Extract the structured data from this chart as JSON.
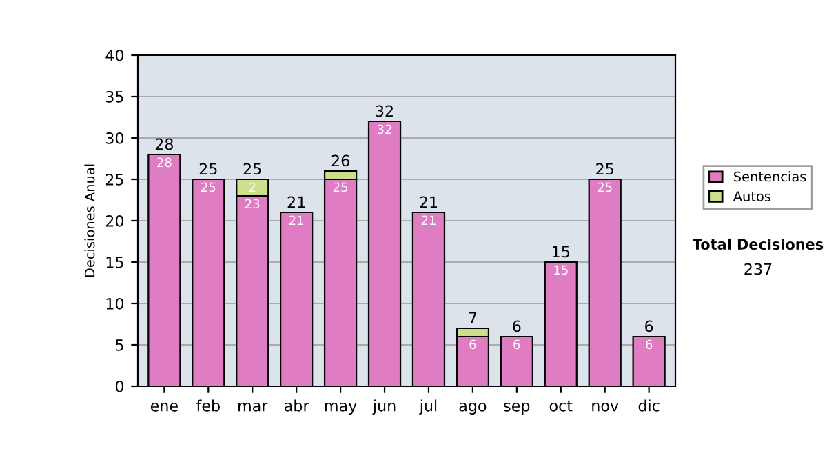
{
  "chart_data": {
    "type": "bar",
    "stacked": true,
    "ylabel": "Decisiones Anual",
    "categories": [
      "ene",
      "feb",
      "mar",
      "abr",
      "may",
      "jun",
      "jul",
      "ago",
      "sep",
      "oct",
      "nov",
      "dic"
    ],
    "series": [
      {
        "name": "Sentencias",
        "color": "#e07cc4",
        "values": [
          28,
          25,
          23,
          21,
          25,
          32,
          21,
          6,
          6,
          15,
          25,
          6
        ],
        "value_labels": [
          "28",
          "25",
          "23",
          "21",
          "25",
          "32",
          "21",
          "6",
          "6",
          "15",
          "25",
          "6"
        ]
      },
      {
        "name": "Autos",
        "color": "#cce08c",
        "values": [
          0,
          0,
          2,
          0,
          1,
          0,
          0,
          1,
          0,
          0,
          0,
          0
        ],
        "value_labels": [
          null,
          null,
          "2",
          null,
          null,
          null,
          null,
          null,
          null,
          null,
          null,
          null
        ]
      }
    ],
    "totals": [
      "28",
      "25",
      "25",
      "21",
      "26",
      "32",
      "21",
      "7",
      "6",
      "15",
      "25",
      "6"
    ],
    "ylim": [
      0,
      40
    ],
    "yticks": [
      0,
      5,
      10,
      15,
      20,
      25,
      30,
      35,
      40
    ],
    "grid": "y",
    "legend": "right",
    "annotations": [
      "Total Decisiones",
      "237"
    ]
  }
}
